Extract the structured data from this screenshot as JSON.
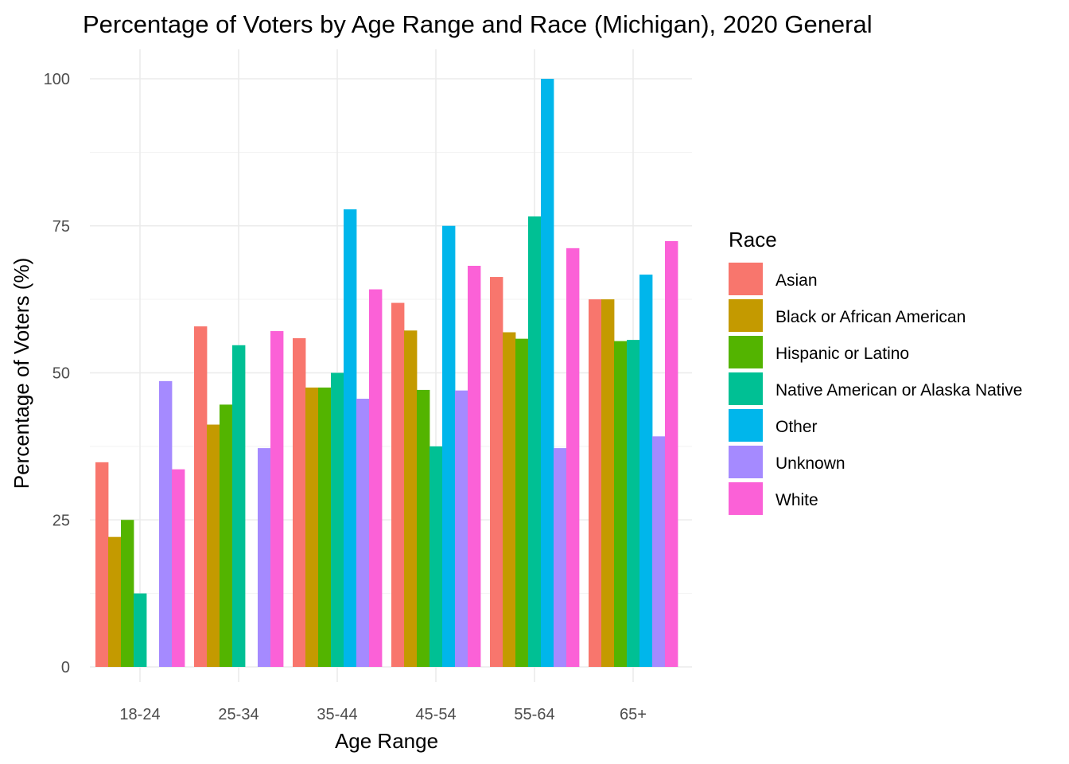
{
  "chart_data": {
    "type": "bar",
    "title": "Percentage of Voters by Age Range and Race (Michigan), 2020 General",
    "xlabel": "Age Range",
    "ylabel": "Percentage of Voters (%)",
    "ylim": [
      0,
      100
    ],
    "yticks": [
      0,
      25,
      50,
      75,
      100
    ],
    "grid": true,
    "legend_title": "Race",
    "legend_position": "right",
    "categories": [
      "18-24",
      "25-34",
      "35-44",
      "45-54",
      "55-64",
      "65+"
    ],
    "series": [
      {
        "name": "Asian",
        "color": "#F8766D",
        "values": [
          34.8,
          57.9,
          55.9,
          61.9,
          66.3,
          62.5
        ]
      },
      {
        "name": "Black or African American",
        "color": "#C49A00",
        "values": [
          22.1,
          41.2,
          47.5,
          57.2,
          56.9,
          62.5
        ]
      },
      {
        "name": "Hispanic or Latino",
        "color": "#53B400",
        "values": [
          25.0,
          44.6,
          47.5,
          47.1,
          55.8,
          55.4
        ]
      },
      {
        "name": "Native American or Alaska Native",
        "color": "#00C094",
        "values": [
          12.5,
          54.7,
          50.0,
          37.5,
          76.6,
          55.6
        ]
      },
      {
        "name": "Other",
        "color": "#00B6EB",
        "values": [
          null,
          null,
          77.8,
          75.0,
          100.0,
          66.7
        ]
      },
      {
        "name": "Unknown",
        "color": "#A58AFF",
        "values": [
          48.6,
          37.2,
          45.6,
          47.0,
          37.2,
          39.2
        ]
      },
      {
        "name": "White",
        "color": "#FB61D7",
        "values": [
          33.6,
          57.1,
          64.2,
          68.2,
          71.2,
          72.4
        ]
      }
    ]
  }
}
